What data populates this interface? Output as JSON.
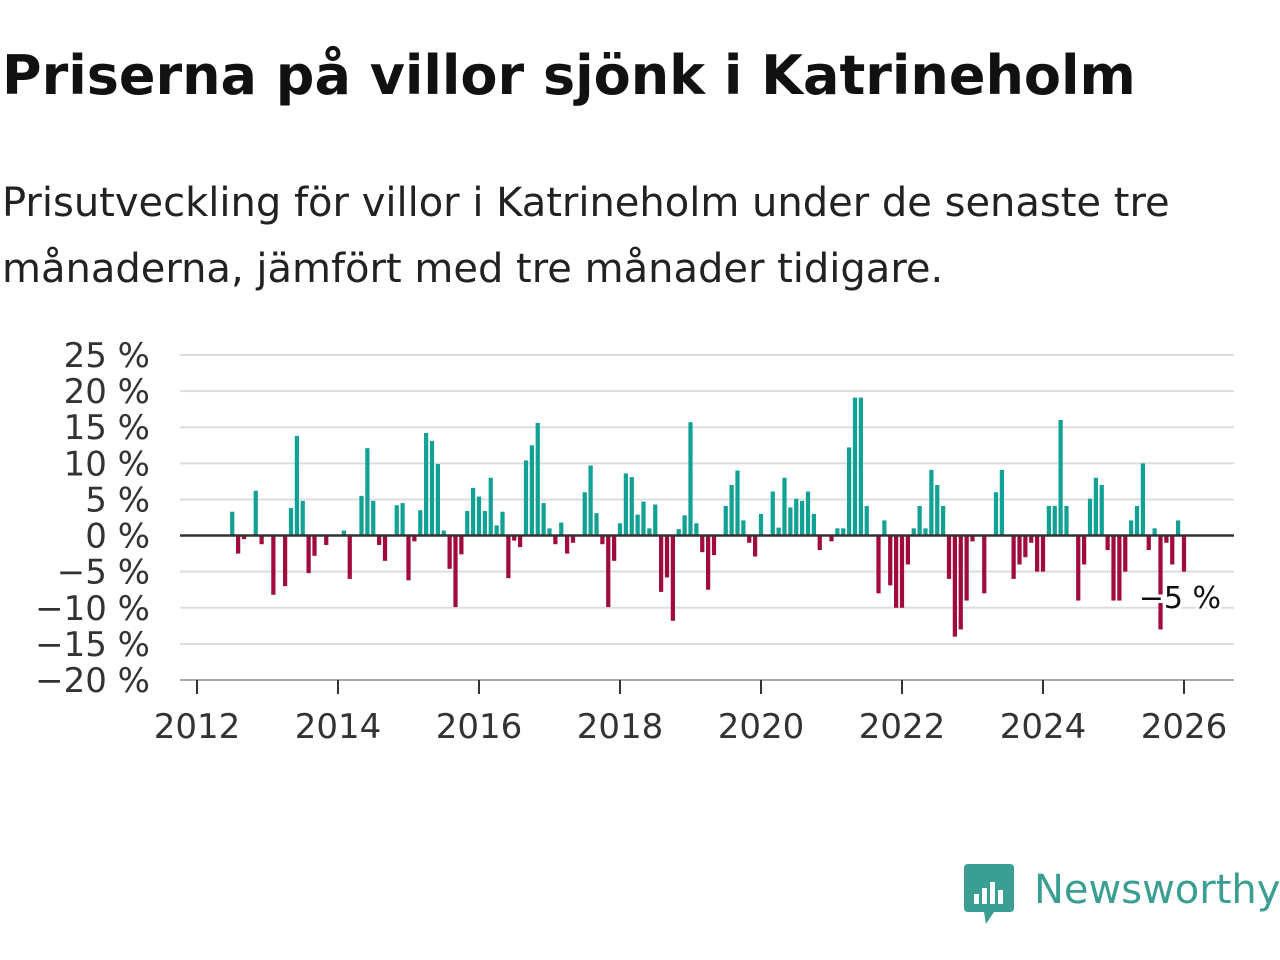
{
  "title": "Priserna på villor sjönk i Katrineholm",
  "subtitle": "Prisutveckling för villor i Katrineholm under de senaste tre månaderna, jämfört med tre månader tidigare.",
  "brand": {
    "name": "Newsworthy",
    "color": "#3a9e92"
  },
  "colors": {
    "positive": "#12a195",
    "negative": "#a00b3c",
    "grid": "#dddddd",
    "zero": "#333333",
    "text": "#333333"
  },
  "chart_data": {
    "type": "bar",
    "ylim": [
      -20,
      25
    ],
    "y_ticks": [
      {
        "value": 25,
        "label": "25 %"
      },
      {
        "value": 20,
        "label": "20 %"
      },
      {
        "value": 15,
        "label": "15 %"
      },
      {
        "value": 10,
        "label": "10 %"
      },
      {
        "value": 5,
        "label": "5 %"
      },
      {
        "value": 0,
        "label": "0 %"
      },
      {
        "value": -5,
        "label": "−5 %"
      },
      {
        "value": -10,
        "label": "−10 %"
      },
      {
        "value": -15,
        "label": "−15 %"
      },
      {
        "value": -20,
        "label": "−20 %"
      }
    ],
    "x_ticks": [
      {
        "value": 2012,
        "label": "2012"
      },
      {
        "value": 2014,
        "label": "2014"
      },
      {
        "value": 2016,
        "label": "2016"
      },
      {
        "value": 2018,
        "label": "2018"
      },
      {
        "value": 2020,
        "label": "2020"
      },
      {
        "value": 2022,
        "label": "2022"
      },
      {
        "value": 2024,
        "label": "2024"
      },
      {
        "value": 2026,
        "label": "2026"
      }
    ],
    "xlim": [
      2011.8,
      2026.7
    ],
    "start": {
      "year": 2012,
      "month": 7
    },
    "values": [
      3.3,
      -2.5,
      -0.5,
      0,
      6.2,
      -1.2,
      0,
      -8.2,
      0,
      -7,
      3.8,
      13.8,
      4.8,
      -5.2,
      -2.8,
      0,
      -1.3,
      0,
      0,
      0.7,
      -6,
      0,
      5.5,
      12.1,
      4.8,
      -1.3,
      -3.5,
      0,
      4.2,
      4.5,
      -6.2,
      -0.8,
      3.5,
      14.2,
      13.1,
      9.9,
      0.7,
      -4.6,
      -9.9,
      -2.6,
      3.4,
      6.6,
      5.4,
      3.4,
      8,
      1.4,
      3.3,
      -5.9,
      -0.7,
      -1.6,
      10.4,
      12.5,
      15.6,
      4.5,
      1,
      -1.2,
      1.8,
      -2.5,
      -1,
      0,
      6,
      9.7,
      3.1,
      -1.2,
      -9.9,
      -3.5,
      1.7,
      8.6,
      8.1,
      2.9,
      4.7,
      1,
      4.3,
      -7.8,
      -5.8,
      -11.8,
      0.9,
      2.8,
      15.7,
      1.7,
      -2.3,
      -7.5,
      -2.7,
      0,
      4.1,
      7,
      9,
      2.1,
      -1,
      -2.9,
      3,
      0,
      6.1,
      1.1,
      8,
      3.9,
      5.1,
      4.8,
      6.1,
      3,
      -2,
      0,
      -0.8,
      1,
      1,
      12.2,
      19.1,
      19.1,
      4.1,
      0,
      -8,
      2.1,
      -6.9,
      -10,
      -10,
      -4,
      1,
      4.1,
      1,
      9.1,
      7,
      4.1,
      -6,
      -14,
      -13,
      -9,
      -0.8,
      0,
      -8,
      0,
      6,
      9.1,
      0,
      -6,
      -4,
      -3,
      -1,
      -5,
      -5,
      4.1,
      4.1,
      16,
      4.1,
      0,
      -9,
      -4,
      5.1,
      8,
      7,
      -2,
      -9,
      -9,
      -5,
      2.1,
      4.1,
      10,
      -2,
      1,
      -13,
      -1,
      -4,
      2.1,
      -5
    ],
    "last_value_label": "−5 %"
  }
}
